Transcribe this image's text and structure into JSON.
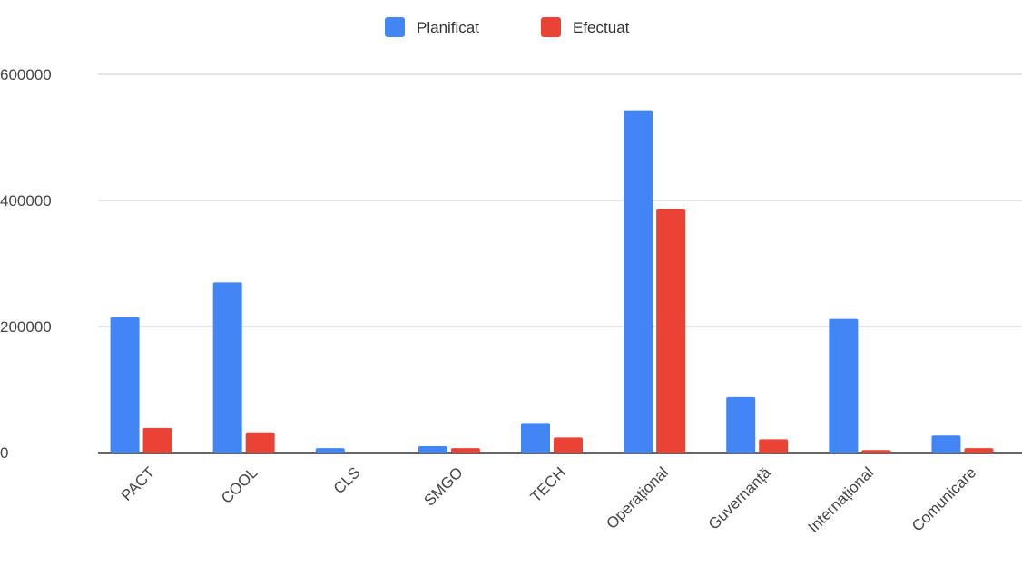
{
  "chart_data": {
    "type": "bar",
    "title": "",
    "xlabel": "",
    "ylabel": "",
    "categories": [
      "PACT",
      "COOL",
      "CLS",
      "SMGO",
      "TECH",
      "Operațional",
      "Guvernanță",
      "Internațional",
      "Comunicare"
    ],
    "series": [
      {
        "name": "Planificat",
        "color": "#4285F4",
        "values": [
          215000,
          270000,
          7000,
          10000,
          47000,
          543000,
          88000,
          212000,
          27000
        ]
      },
      {
        "name": "Efectuat",
        "color": "#EA4335",
        "values": [
          39000,
          32000,
          0,
          7000,
          24000,
          387000,
          21000,
          4000,
          7000
        ]
      }
    ],
    "ylim": [
      0,
      600000
    ],
    "yticks": [
      "0",
      "200000",
      "400000",
      "600000"
    ],
    "grid": true,
    "legend_position": "top-center"
  }
}
